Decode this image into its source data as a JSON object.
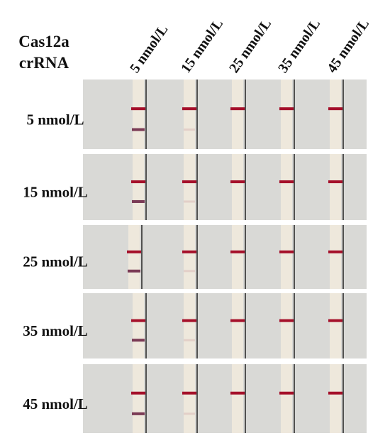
{
  "corner": [
    "Cas12a",
    "crRNA"
  ],
  "columns": [
    "5 nmol/L",
    "15 nmol/L",
    "25 nmol/L",
    "35 nmol/L",
    "45 nmol/L"
  ],
  "rows": [
    "5 nmol/L",
    "15 nmol/L",
    "25 nmol/L",
    "35 nmol/L",
    "45 nmol/L"
  ]
}
